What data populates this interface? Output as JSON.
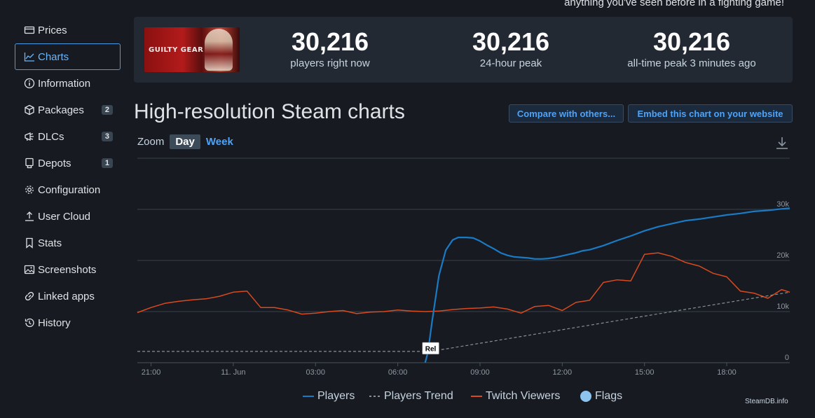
{
  "header": {
    "tagline": "anything you've seen before in a fighting game!"
  },
  "sidebar": {
    "items": [
      {
        "label": "Prices",
        "icon": "prices-icon",
        "badge": ""
      },
      {
        "label": "Charts",
        "icon": "charts-icon",
        "badge": "",
        "active": true
      },
      {
        "label": "Information",
        "icon": "info-icon",
        "badge": ""
      },
      {
        "label": "Packages",
        "icon": "package-icon",
        "badge": "2"
      },
      {
        "label": "DLCs",
        "icon": "dlc-icon",
        "badge": "3"
      },
      {
        "label": "Depots",
        "icon": "depot-icon",
        "badge": "1"
      },
      {
        "label": "Configuration",
        "icon": "gear-icon",
        "badge": ""
      },
      {
        "label": "User Cloud",
        "icon": "upload-icon",
        "badge": ""
      },
      {
        "label": "Stats",
        "icon": "bookmark-icon",
        "badge": ""
      },
      {
        "label": "Screenshots",
        "icon": "image-icon",
        "badge": ""
      },
      {
        "label": "Linked apps",
        "icon": "link-icon",
        "badge": ""
      },
      {
        "label": "History",
        "icon": "history-icon",
        "badge": ""
      }
    ]
  },
  "stats": {
    "game_logo_text": "GUILTY GEAR",
    "current": {
      "value": "30,216",
      "label": "players right now"
    },
    "peak24": {
      "value": "30,216",
      "label": "24-hour peak"
    },
    "alltime": {
      "value": "30,216",
      "label": "all-time peak 3 minutes ago"
    }
  },
  "page": {
    "title": "High-resolution Steam charts",
    "compare_label": "Compare with others...",
    "embed_label": "Embed this chart on your website",
    "zoom_label": "Zoom",
    "zoom_day": "Day",
    "zoom_week": "Week",
    "credit": "SteamDB.info"
  },
  "colors": {
    "players": "#1a7bc4",
    "trend": "#8a8f96",
    "twitch": "#d94a1e",
    "flags": "#8cc4ef",
    "accent": "#4fa3f7"
  },
  "chart_data": {
    "type": "line",
    "x_ticks": [
      "21:00",
      "11. Jun",
      "03:00",
      "06:00",
      "09:00",
      "12:00",
      "15:00",
      "18:00"
    ],
    "y_ticks": [
      "0",
      "10k",
      "20k",
      "30k"
    ],
    "ylim": [
      0,
      40000
    ],
    "xlim_hours": [
      20.5,
      44.3
    ],
    "tick_hours": [
      21,
      24,
      27,
      30,
      33,
      36,
      39,
      42
    ],
    "legend_position": "bottom",
    "grid": true,
    "flag": {
      "label": "Rel",
      "hour": 31.2
    },
    "series": [
      {
        "name": "Players",
        "x_hours": [
          31.0,
          31.1,
          31.25,
          31.5,
          31.75,
          32.0,
          32.2,
          32.5,
          32.75,
          33.0,
          33.25,
          33.5,
          33.75,
          34.0,
          34.25,
          34.5,
          34.75,
          35.0,
          35.25,
          35.5,
          35.75,
          36.0,
          36.25,
          36.5,
          36.75,
          37.0,
          37.5,
          38.0,
          38.5,
          39.0,
          39.5,
          40.0,
          40.5,
          41.0,
          41.5,
          42.0,
          42.5,
          43.0,
          43.5,
          44.0,
          44.3
        ],
        "values": [
          0,
          2000,
          8000,
          17000,
          22000,
          24000,
          24500,
          24500,
          24400,
          23800,
          23000,
          22300,
          21500,
          21000,
          20700,
          20600,
          20500,
          20300,
          20300,
          20400,
          20600,
          20900,
          21200,
          21500,
          21900,
          22100,
          22900,
          23900,
          24800,
          25800,
          26600,
          27200,
          27800,
          28100,
          28500,
          28900,
          29200,
          29600,
          29800,
          30100,
          30216
        ]
      },
      {
        "name": "Players Trend",
        "x_hours": [
          20.5,
          31.2,
          44.3
        ],
        "values": [
          2200,
          2200,
          13800
        ]
      },
      {
        "name": "Twitch Viewers",
        "x_hours": [
          20.5,
          21.0,
          21.5,
          22.0,
          22.5,
          23.0,
          23.5,
          24.0,
          24.5,
          25.0,
          25.5,
          26.0,
          26.5,
          27.0,
          27.5,
          28.0,
          28.5,
          29.0,
          29.5,
          30.0,
          30.5,
          31.0,
          31.5,
          32.0,
          32.5,
          33.0,
          33.5,
          34.0,
          34.5,
          35.0,
          35.5,
          36.0,
          36.5,
          37.0,
          37.5,
          38.0,
          38.5,
          39.0,
          39.5,
          40.0,
          40.5,
          41.0,
          41.5,
          42.0,
          42.5,
          43.0,
          43.5,
          44.0,
          44.3
        ],
        "values": [
          9800,
          10800,
          11600,
          12000,
          12300,
          12500,
          13000,
          13800,
          14000,
          10800,
          10800,
          10300,
          9500,
          9700,
          10000,
          10200,
          9600,
          9900,
          10000,
          10300,
          10100,
          10000,
          10100,
          10400,
          10600,
          10700,
          10900,
          10500,
          9700,
          11000,
          11200,
          10200,
          11800,
          12200,
          15700,
          16200,
          16000,
          21200,
          21500,
          20800,
          19600,
          18900,
          17500,
          16800,
          14000,
          13600,
          12600,
          14300,
          13800
        ]
      }
    ]
  }
}
